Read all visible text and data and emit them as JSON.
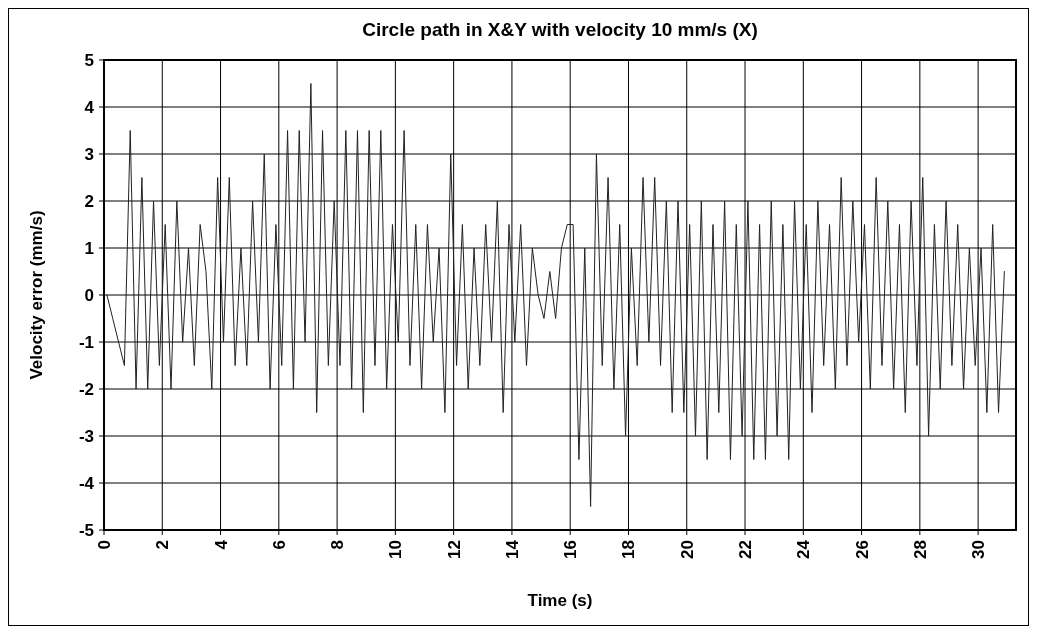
{
  "chart_data": {
    "type": "line",
    "title": "Circle path in X&Y with velocity 10 mm/s (X)",
    "xlabel": "Time (s)",
    "ylabel": "Velocity error (mm/s)",
    "xlim": [
      0,
      31.3
    ],
    "xticks": [
      0,
      2,
      4,
      6,
      8,
      10,
      12,
      14,
      16,
      18,
      20,
      22,
      24,
      26,
      28,
      30
    ],
    "ylim": [
      -5,
      5
    ],
    "yticks": [
      -5,
      -4,
      -3,
      -2,
      -1,
      0,
      1,
      2,
      3,
      4,
      5
    ],
    "grid": true,
    "marker": "none",
    "line_style": "solid",
    "series": [
      {
        "color": "#222222",
        "x": [
          0.1,
          0.3,
          0.5,
          0.7,
          0.9,
          1.1,
          1.3,
          1.5,
          1.7,
          1.9,
          2.1,
          2.3,
          2.5,
          2.7,
          2.9,
          3.1,
          3.3,
          3.5,
          3.7,
          3.9,
          4.1,
          4.3,
          4.5,
          4.7,
          4.9,
          5.1,
          5.3,
          5.5,
          5.7,
          5.9,
          6.1,
          6.3,
          6.5,
          6.7,
          6.9,
          7.1,
          7.3,
          7.5,
          7.7,
          7.9,
          8.1,
          8.3,
          8.5,
          8.7,
          8.9,
          9.1,
          9.3,
          9.5,
          9.7,
          9.9,
          10.1,
          10.3,
          10.5,
          10.7,
          10.9,
          11.1,
          11.3,
          11.5,
          11.7,
          11.9,
          12.1,
          12.3,
          12.5,
          12.7,
          12.9,
          13.1,
          13.3,
          13.5,
          13.7,
          13.9,
          14.1,
          14.3,
          14.5,
          14.7,
          14.9,
          15.1,
          15.3,
          15.5,
          15.7,
          15.9,
          16.1,
          16.3,
          16.5,
          16.7,
          16.9,
          17.1,
          17.3,
          17.5,
          17.7,
          17.9,
          18.1,
          18.3,
          18.5,
          18.7,
          18.9,
          19.1,
          19.3,
          19.5,
          19.7,
          19.9,
          20.1,
          20.3,
          20.5,
          20.7,
          20.9,
          21.1,
          21.3,
          21.5,
          21.7,
          21.9,
          22.1,
          22.3,
          22.5,
          22.7,
          22.9,
          23.1,
          23.3,
          23.5,
          23.7,
          23.9,
          24.1,
          24.3,
          24.5,
          24.7,
          24.9,
          25.1,
          25.3,
          25.5,
          25.7,
          25.9,
          26.1,
          26.3,
          26.5,
          26.7,
          26.9,
          27.1,
          27.3,
          27.5,
          27.7,
          27.9,
          28.1,
          28.3,
          28.5,
          28.7,
          28.9,
          29.1,
          29.3,
          29.5,
          29.7,
          29.9,
          30.1,
          30.3,
          30.5,
          30.7,
          30.9
        ],
        "values": [
          0,
          -0.5,
          -1,
          -1.5,
          3.5,
          -2,
          2.5,
          -2,
          2,
          -1.5,
          1.5,
          -2,
          2,
          -1,
          1,
          -1.5,
          1.5,
          0.5,
          -2,
          2.5,
          -1,
          2.5,
          -1.5,
          1,
          -1.5,
          2,
          -1,
          3,
          -2,
          1.5,
          -1.5,
          3.5,
          -2,
          3.5,
          -1,
          4.5,
          -2.5,
          3.5,
          -1.5,
          2,
          -1.5,
          3.5,
          -2,
          3.5,
          -2.5,
          3.5,
          -1.5,
          3.5,
          -2,
          1.5,
          -1,
          3.5,
          -1.5,
          1.5,
          -2,
          1.5,
          -1,
          1,
          -2.5,
          3,
          -1.5,
          1.5,
          -2,
          1,
          -1.5,
          1.5,
          -1,
          2,
          -2.5,
          1.5,
          -1,
          1.5,
          -1.5,
          1,
          0,
          -0.5,
          0.5,
          -0.5,
          1,
          1.5,
          1.5,
          -3.5,
          1,
          -4.5,
          3,
          -1.5,
          2.5,
          -2,
          1.5,
          -3,
          1,
          -1.5,
          2.5,
          -1,
          2.5,
          -1.5,
          2,
          -2.5,
          2,
          -2.5,
          1.5,
          -3,
          2,
          -3.5,
          1.5,
          -2.5,
          2,
          -3.5,
          1.5,
          -3,
          2,
          -3.5,
          1.5,
          -3.5,
          2,
          -3,
          1.5,
          -3.5,
          2,
          -2,
          1.5,
          -2.5,
          2,
          -1.5,
          1.5,
          -2,
          2.5,
          -1.5,
          2,
          -1,
          1.5,
          -2,
          2.5,
          -1.5,
          2,
          -2,
          1.5,
          -2.5,
          2,
          -1.5,
          2.5,
          -3,
          1.5,
          -2,
          2,
          -1.5,
          1.5,
          -2,
          1,
          -1.5,
          1,
          -2.5,
          1.5,
          -2.5,
          0.5
        ]
      }
    ]
  }
}
